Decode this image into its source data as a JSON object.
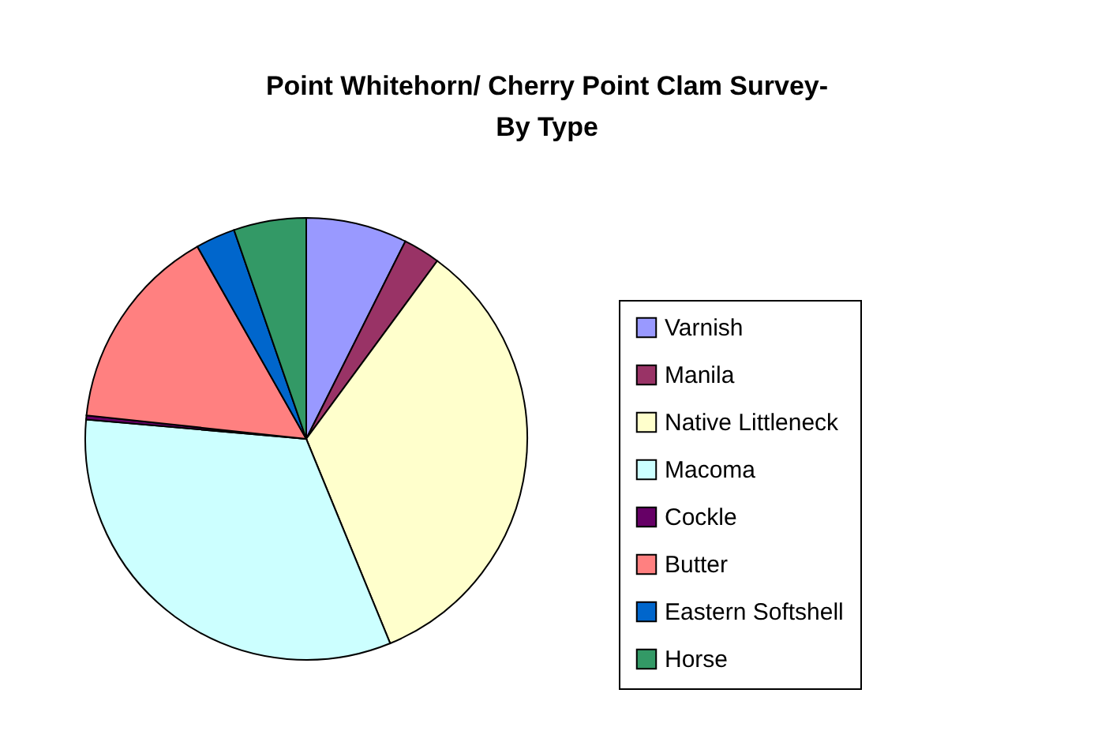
{
  "chart_data": {
    "type": "pie",
    "title": "Point Whitehorn/ Cherry Point Clam Survey-\nBy Type",
    "categories": [
      "Varnish",
      "Manila",
      "Native Littleneck",
      "Macoma",
      "Cockle",
      "Butter",
      "Eastern Softshell",
      "Horse"
    ],
    "values": [
      7.4,
      2.7,
      33.7,
      32.6,
      0.3,
      15.1,
      2.9,
      5.3
    ],
    "colors": [
      "#9999ff",
      "#993366",
      "#ffffcc",
      "#ccffff",
      "#660066",
      "#ff8080",
      "#0066cc",
      "#339966"
    ],
    "legend": "right"
  }
}
